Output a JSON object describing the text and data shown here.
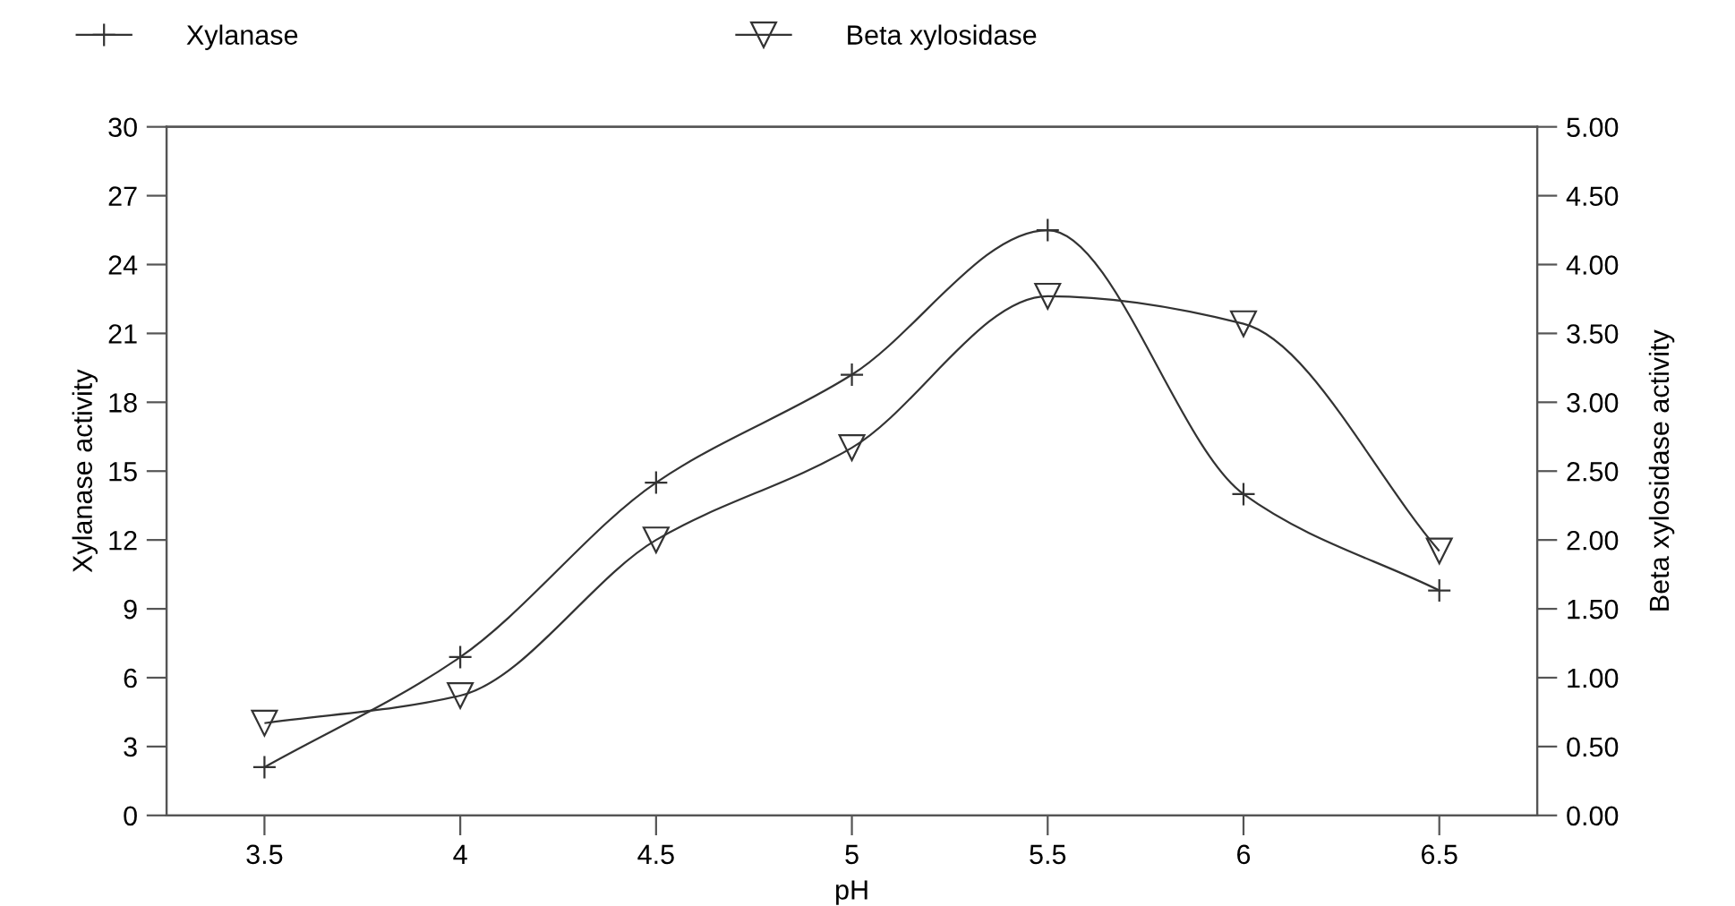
{
  "chart_data": {
    "type": "line",
    "xlabel": "pH",
    "ylabel": "Xylanase activity",
    "y2label": "Beta xylosidase activity",
    "series": [
      {
        "name": "Xylanase",
        "color": "#333333",
        "marker": "cross",
        "x": [
          3.5,
          4,
          4.5,
          5,
          5.5,
          6,
          6.5
        ],
        "values": [
          2.1,
          6.9,
          14.5,
          19.2,
          25.5,
          14,
          9.8
        ]
      },
      {
        "name": "Beta xylosidase",
        "color": "#333333",
        "marker": "triangle",
        "axis": "y2",
        "x": [
          3.5,
          4,
          4.5,
          5,
          5.5,
          6,
          6.5
        ],
        "values": [
          0.67,
          0.87,
          2.0,
          2.67,
          3.77,
          3.57,
          1.92
        ]
      }
    ],
    "xlim": [
      3.25,
      6.75
    ],
    "xticks": [
      3.5,
      4,
      4.5,
      5,
      5.5,
      6,
      6.5
    ],
    "ylim": [
      0,
      30
    ],
    "yticks": [
      0,
      3,
      6,
      9,
      12,
      15,
      18,
      21,
      24,
      27,
      30
    ],
    "y2lim": [
      0,
      5
    ],
    "y2ticks": [
      {
        "value": 0,
        "label": "0.00"
      },
      {
        "value": 0.5,
        "label": "0.50"
      },
      {
        "value": 1,
        "label": "1.00"
      },
      {
        "value": 1.5,
        "label": "1.50"
      },
      {
        "value": 2,
        "label": "2.00"
      },
      {
        "value": 2.5,
        "label": "2.50"
      },
      {
        "value": 3,
        "label": "3.00"
      },
      {
        "value": 3.5,
        "label": "3.50"
      },
      {
        "value": 4,
        "label": "4.00"
      },
      {
        "value": 4.5,
        "label": "4.50"
      },
      {
        "value": 5,
        "label": "5.00"
      }
    ],
    "line_style": "solid",
    "grid": false,
    "legend": "top"
  }
}
